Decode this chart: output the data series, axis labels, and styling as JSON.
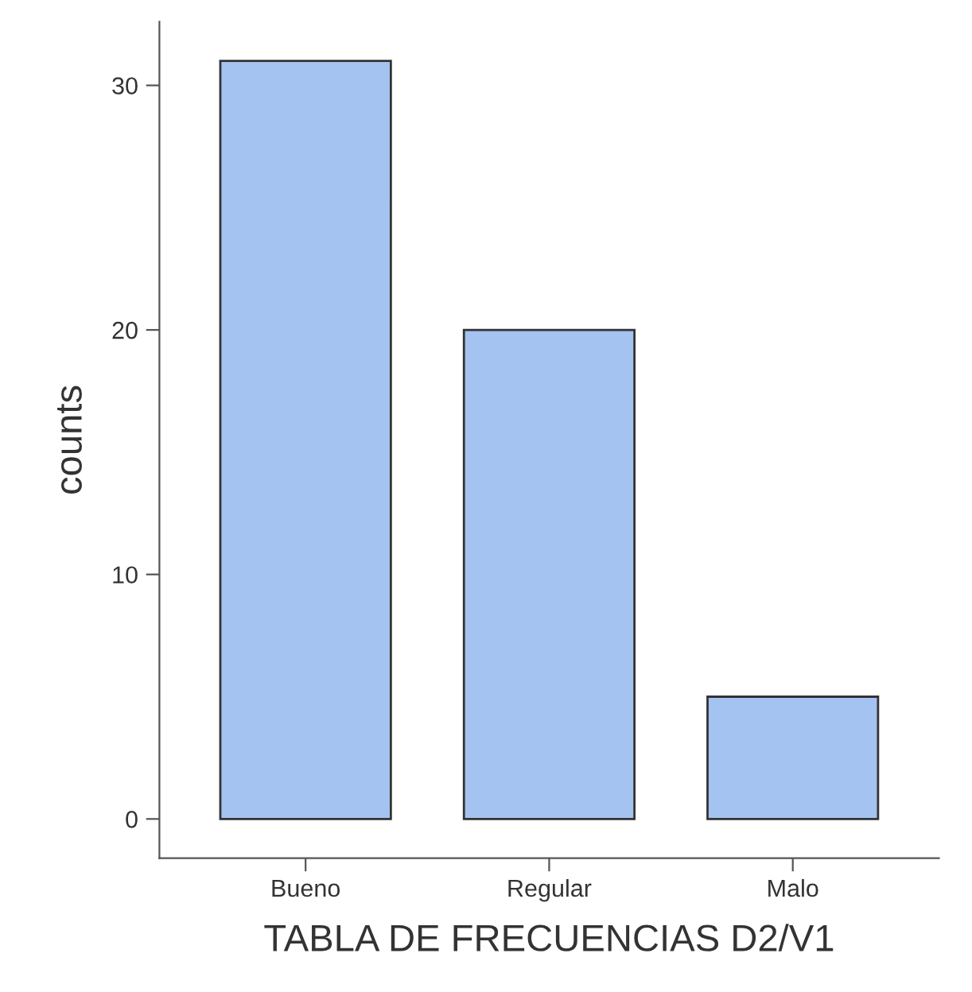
{
  "chart_data": {
    "type": "bar",
    "xlabel": "TABLA DE FRECUENCIAS D2/V1",
    "ylabel": "counts",
    "categories": [
      "Bueno",
      "Regular",
      "Malo"
    ],
    "values": [
      31,
      20,
      5
    ],
    "color": "#a4c3f0",
    "ylim": [
      -1.6,
      32.6
    ],
    "yticks": [
      0,
      10,
      20,
      30
    ],
    "grid": false,
    "legend": false
  }
}
